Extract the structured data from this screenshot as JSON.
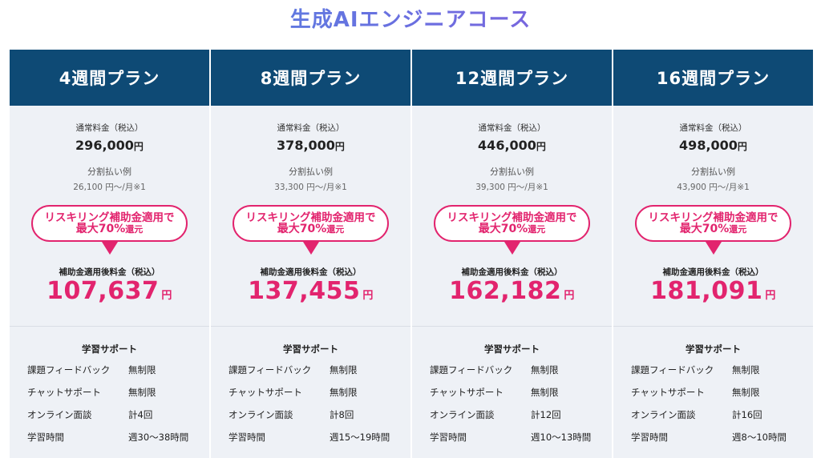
{
  "page": {
    "title": "生成AIエンジニアコース"
  },
  "labels": {
    "regular": "通常料金（税込）",
    "split": "分割払い例",
    "badge_line1": "リスキリング補助金適用で",
    "badge_line2_main": "最大70%",
    "badge_line2_suffix": "還元",
    "subsidized": "補助金適用後料金（税込）",
    "yen": "円",
    "support_title": "学習サポート"
  },
  "plans": [
    {
      "name": "4週間プラン",
      "regular_price": "296,000",
      "split_price": "26,100 円〜/月※1",
      "subsidized_price": "107,637",
      "support": [
        {
          "k": "課題フィードバック",
          "v": "無制限"
        },
        {
          "k": "チャットサポート",
          "v": "無制限"
        },
        {
          "k": "オンライン面談",
          "v": "計4回"
        },
        {
          "k": "学習時間",
          "v": "週30〜38時間"
        }
      ]
    },
    {
      "name": "8週間プラン",
      "regular_price": "378,000",
      "split_price": "33,300 円〜/月※1",
      "subsidized_price": "137,455",
      "support": [
        {
          "k": "課題フィードバック",
          "v": "無制限"
        },
        {
          "k": "チャットサポート",
          "v": "無制限"
        },
        {
          "k": "オンライン面談",
          "v": "計8回"
        },
        {
          "k": "学習時間",
          "v": "週15〜19時間"
        }
      ]
    },
    {
      "name": "12週間プラン",
      "regular_price": "446,000",
      "split_price": "39,300 円〜/月※1",
      "subsidized_price": "162,182",
      "support": [
        {
          "k": "課題フィードバック",
          "v": "無制限"
        },
        {
          "k": "チャットサポート",
          "v": "無制限"
        },
        {
          "k": "オンライン面談",
          "v": "計12回"
        },
        {
          "k": "学習時間",
          "v": "週10〜13時間"
        }
      ]
    },
    {
      "name": "16週間プラン",
      "regular_price": "498,000",
      "split_price": "43,900 円〜/月※1",
      "subsidized_price": "181,091",
      "support": [
        {
          "k": "課題フィードバック",
          "v": "無制限"
        },
        {
          "k": "チャットサポート",
          "v": "無制限"
        },
        {
          "k": "オンライン面談",
          "v": "計16回"
        },
        {
          "k": "学習時間",
          "v": "週8〜10時間"
        }
      ]
    }
  ],
  "colors": {
    "header_bg": "#0e4a75",
    "accent_pink": "#e2246e",
    "card_bg": "#eef1f6",
    "title_gradient_start": "#4a8fe0",
    "title_gradient_end": "#9a52d8"
  }
}
